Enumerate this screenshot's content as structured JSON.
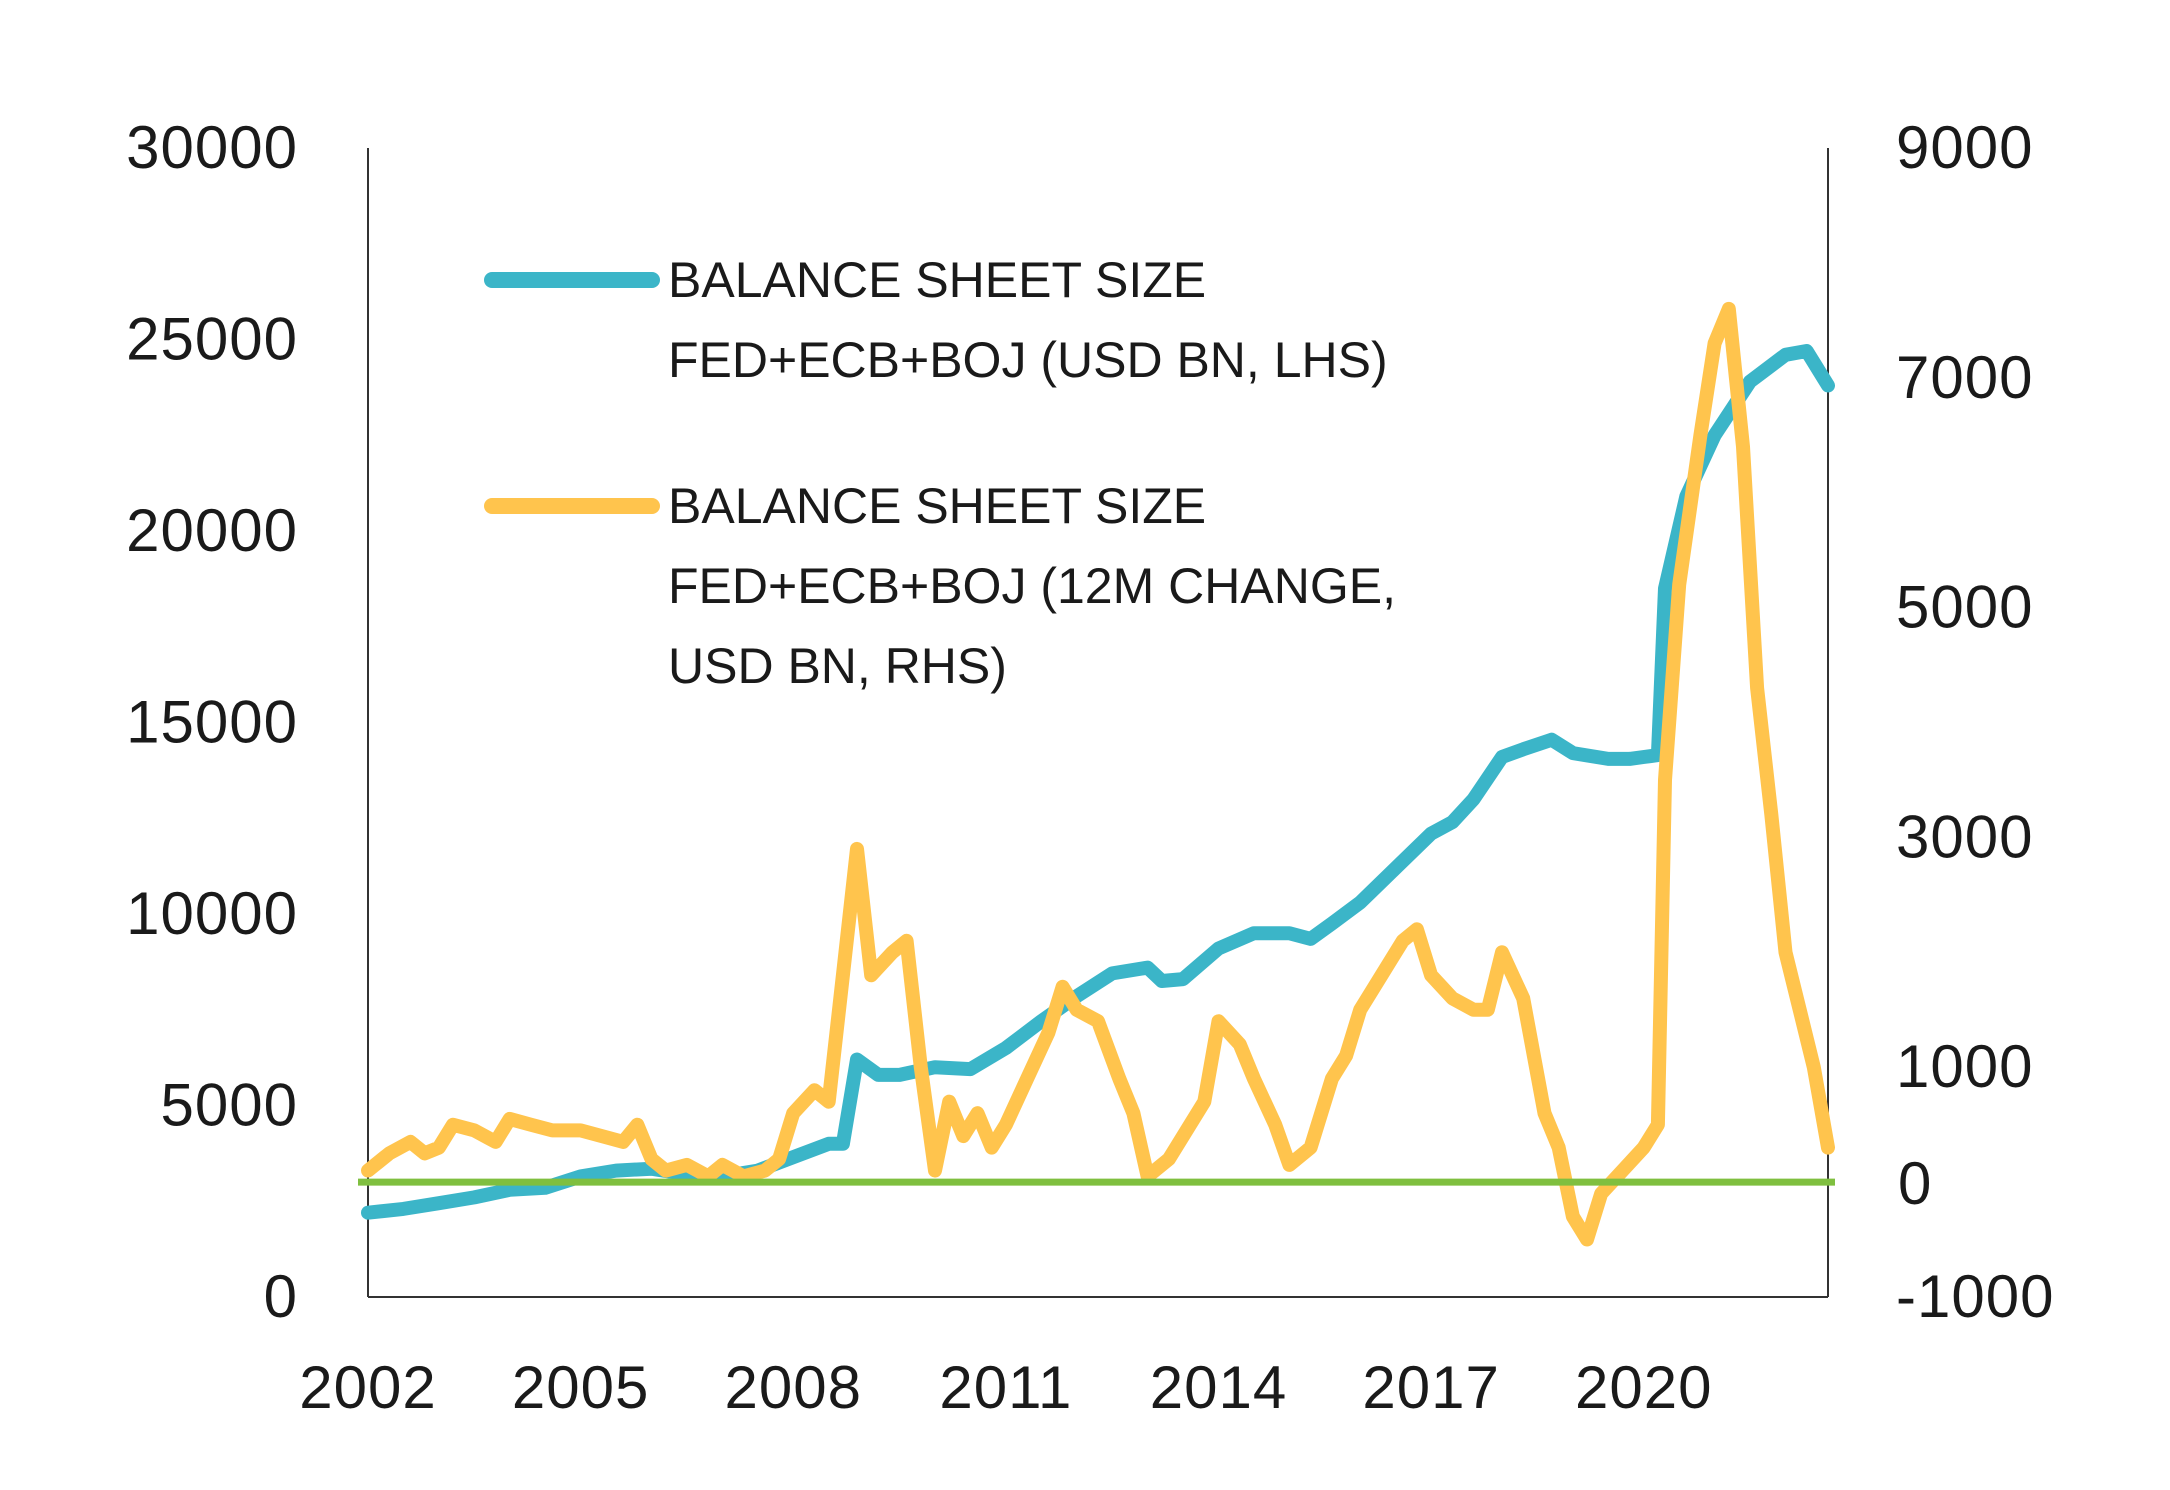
{
  "chart_data": {
    "type": "line",
    "x_axis": {
      "ticks": [
        "2002",
        "2005",
        "2008",
        "2011",
        "2014",
        "2017",
        "2020"
      ],
      "range": [
        2002,
        2022.6
      ]
    },
    "y_left": {
      "ticks": [
        "0",
        "5000",
        "10000",
        "15000",
        "20000",
        "25000",
        "30000"
      ],
      "range": [
        0,
        30000
      ]
    },
    "y_right": {
      "ticks": [
        "-1000",
        "0",
        "1000",
        "3000",
        "5000",
        "7000",
        "9000"
      ],
      "range": [
        -1000,
        9000
      ]
    },
    "zero_line": {
      "label": "0",
      "value": 0,
      "axis": "right",
      "color": "#7fbf3f"
    },
    "legend": [
      {
        "lines": [
          "BALANCE SHEET SIZE",
          "FED+ECB+BOJ (USD BN, LHS)"
        ]
      },
      {
        "lines": [
          "BALANCE SHEET SIZE",
          "FED+ECB+BOJ (12M CHANGE,",
          "USD BN, RHS)"
        ]
      }
    ],
    "series": [
      {
        "name": "BALANCE SHEET SIZE FED+ECB+BOJ (USD BN, LHS)",
        "axis": "left",
        "color": "#3bb5c8",
        "points": [
          [
            2002.0,
            2200
          ],
          [
            2002.5,
            2300
          ],
          [
            2003.0,
            2450
          ],
          [
            2003.5,
            2600
          ],
          [
            2004.0,
            2800
          ],
          [
            2004.5,
            2850
          ],
          [
            2005.0,
            3150
          ],
          [
            2005.5,
            3300
          ],
          [
            2006.0,
            3350
          ],
          [
            2006.5,
            3200
          ],
          [
            2007.0,
            3150
          ],
          [
            2007.5,
            3300
          ],
          [
            2008.0,
            3650
          ],
          [
            2008.5,
            4000
          ],
          [
            2008.7,
            4000
          ],
          [
            2008.9,
            6200
          ],
          [
            2009.2,
            5800
          ],
          [
            2009.5,
            5800
          ],
          [
            2010.0,
            6000
          ],
          [
            2010.5,
            5950
          ],
          [
            2011.0,
            6500
          ],
          [
            2011.5,
            7200
          ],
          [
            2012.0,
            7850
          ],
          [
            2012.5,
            8450
          ],
          [
            2013.0,
            8600
          ],
          [
            2013.2,
            8250
          ],
          [
            2013.5,
            8300
          ],
          [
            2014.0,
            9100
          ],
          [
            2014.5,
            9500
          ],
          [
            2015.0,
            9500
          ],
          [
            2015.3,
            9350
          ],
          [
            2015.6,
            9750
          ],
          [
            2016.0,
            10300
          ],
          [
            2016.5,
            11200
          ],
          [
            2017.0,
            12100
          ],
          [
            2017.3,
            12400
          ],
          [
            2017.6,
            13000
          ],
          [
            2018.0,
            14100
          ],
          [
            2018.3,
            14300
          ],
          [
            2018.7,
            14550
          ],
          [
            2019.0,
            14200
          ],
          [
            2019.5,
            14050
          ],
          [
            2019.8,
            14050
          ],
          [
            2020.0,
            14100
          ],
          [
            2020.2,
            14150
          ],
          [
            2020.3,
            18500
          ],
          [
            2020.6,
            20900
          ],
          [
            2021.0,
            22500
          ],
          [
            2021.5,
            23900
          ],
          [
            2022.0,
            24600
          ],
          [
            2022.3,
            24700
          ],
          [
            2022.6,
            23800
          ]
        ]
      },
      {
        "name": "BALANCE SHEET SIZE FED+ECB+BOJ (12M CHANGE, USD BN, RHS)",
        "axis": "right",
        "color": "#ffc44d",
        "points": [
          [
            2002.0,
            100
          ],
          [
            2002.3,
            250
          ],
          [
            2002.6,
            350
          ],
          [
            2002.8,
            250
          ],
          [
            2003.0,
            300
          ],
          [
            2003.2,
            500
          ],
          [
            2003.5,
            450
          ],
          [
            2003.8,
            350
          ],
          [
            2004.0,
            550
          ],
          [
            2004.3,
            500
          ],
          [
            2004.6,
            450
          ],
          [
            2005.0,
            450
          ],
          [
            2005.3,
            400
          ],
          [
            2005.6,
            350
          ],
          [
            2005.8,
            500
          ],
          [
            2006.0,
            200
          ],
          [
            2006.2,
            100
          ],
          [
            2006.5,
            150
          ],
          [
            2006.8,
            50
          ],
          [
            2007.0,
            150
          ],
          [
            2007.3,
            50
          ],
          [
            2007.6,
            100
          ],
          [
            2007.8,
            200
          ],
          [
            2008.0,
            600
          ],
          [
            2008.3,
            800
          ],
          [
            2008.5,
            700
          ],
          [
            2008.7,
            1800
          ],
          [
            2008.9,
            2900
          ],
          [
            2009.1,
            1800
          ],
          [
            2009.4,
            2000
          ],
          [
            2009.6,
            2100
          ],
          [
            2009.8,
            1000
          ],
          [
            2010.0,
            100
          ],
          [
            2010.2,
            700
          ],
          [
            2010.4,
            400
          ],
          [
            2010.6,
            600
          ],
          [
            2010.8,
            300
          ],
          [
            2011.0,
            500
          ],
          [
            2011.3,
            900
          ],
          [
            2011.6,
            1300
          ],
          [
            2011.8,
            1700
          ],
          [
            2012.0,
            1500
          ],
          [
            2012.3,
            1400
          ],
          [
            2012.6,
            900
          ],
          [
            2012.8,
            600
          ],
          [
            2013.0,
            50
          ],
          [
            2013.3,
            200
          ],
          [
            2013.6,
            500
          ],
          [
            2013.8,
            700
          ],
          [
            2014.0,
            1400
          ],
          [
            2014.3,
            1200
          ],
          [
            2014.5,
            900
          ],
          [
            2014.8,
            500
          ],
          [
            2015.0,
            150
          ],
          [
            2015.3,
            300
          ],
          [
            2015.6,
            900
          ],
          [
            2015.8,
            1100
          ],
          [
            2016.0,
            1500
          ],
          [
            2016.3,
            1800
          ],
          [
            2016.6,
            2100
          ],
          [
            2016.8,
            2200
          ],
          [
            2017.0,
            1800
          ],
          [
            2017.3,
            1600
          ],
          [
            2017.6,
            1500
          ],
          [
            2017.8,
            1500
          ],
          [
            2018.0,
            2000
          ],
          [
            2018.3,
            1600
          ],
          [
            2018.6,
            600
          ],
          [
            2018.8,
            300
          ],
          [
            2019.0,
            -300
          ],
          [
            2019.2,
            -500
          ],
          [
            2019.4,
            -100
          ],
          [
            2019.7,
            100
          ],
          [
            2020.0,
            300
          ],
          [
            2020.2,
            500
          ],
          [
            2020.3,
            3500
          ],
          [
            2020.5,
            5200
          ],
          [
            2020.8,
            6500
          ],
          [
            2021.0,
            7300
          ],
          [
            2021.2,
            7600
          ],
          [
            2021.4,
            6400
          ],
          [
            2021.6,
            4300
          ],
          [
            2021.8,
            3200
          ],
          [
            2022.0,
            2000
          ],
          [
            2022.2,
            1500
          ],
          [
            2022.4,
            1000
          ],
          [
            2022.6,
            300
          ]
        ]
      }
    ]
  }
}
